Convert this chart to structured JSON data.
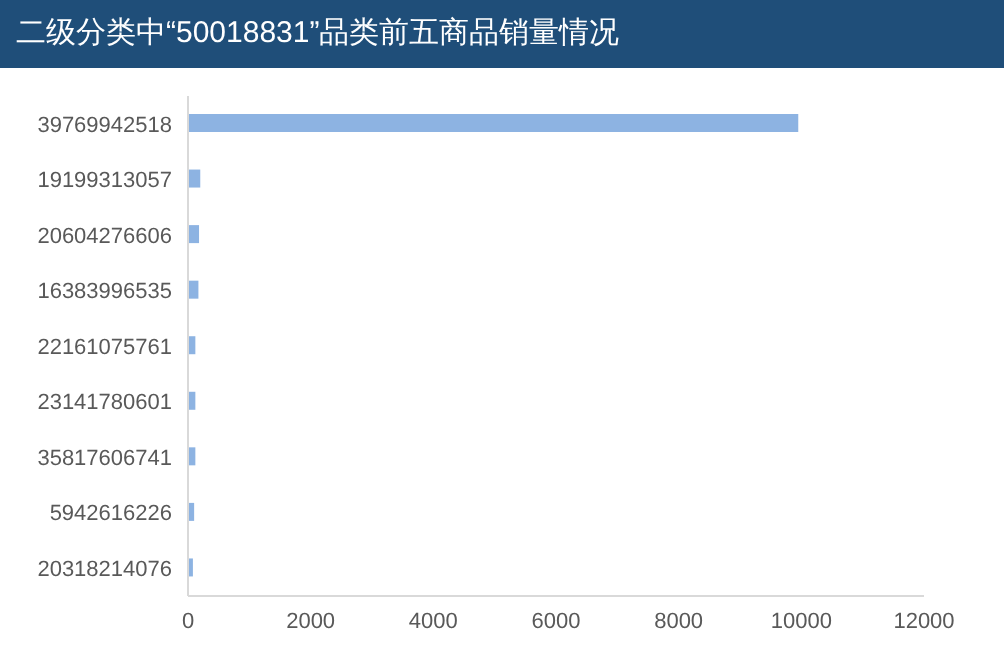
{
  "chart_data": {
    "type": "bar",
    "orientation": "horizontal",
    "title": "二级分类中“50018831”品类前五商品销量情况",
    "categories": [
      "39769942518",
      "19199313057",
      "20604276606",
      "16383996535",
      "22161075761",
      "23141780601",
      "35817606741",
      "5942616226",
      "20318214076"
    ],
    "values": [
      9950,
      200,
      180,
      170,
      120,
      120,
      120,
      100,
      80
    ],
    "color": "#8db3e2",
    "xlim": [
      0,
      12000
    ],
    "xticks": [
      0,
      2000,
      4000,
      6000,
      8000,
      10000,
      12000
    ],
    "grid": false
  }
}
